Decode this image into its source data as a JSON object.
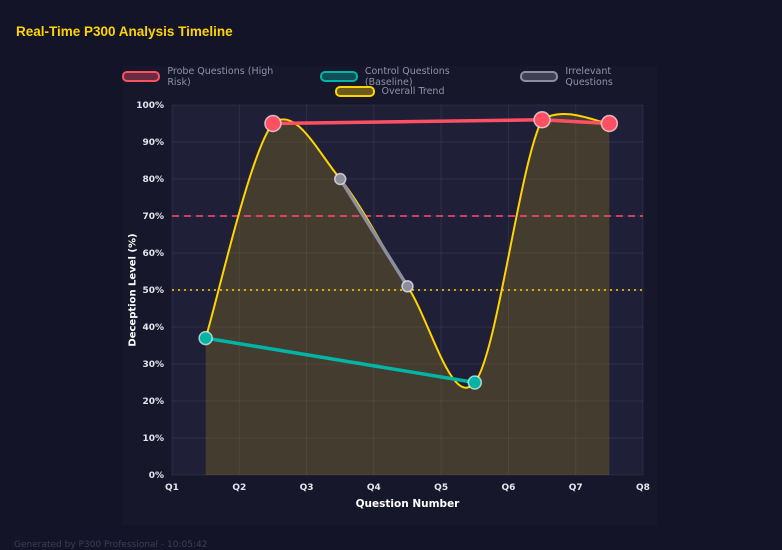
{
  "page": {
    "title": "Real-Time P300 Analysis Timeline",
    "footer_note": "Generated by P300 Professional - 10:05:42"
  },
  "colors": {
    "page_bg": "#141428",
    "panel_bg": "#17172c",
    "plot_bg": "#1f1f38",
    "grid": "rgba(255,255,255,0.07)",
    "title": "#ffd400",
    "tick_text": "#e4e4ee",
    "legend_text": "#9191a6",
    "footer_text": "#3e3e54"
  },
  "chart_data": {
    "type": "line",
    "title": "Real-Time P300 Analysis Timeline",
    "xlabel": "Question Number",
    "ylabel": "Deception Level (%)",
    "xlim": [
      1,
      8
    ],
    "ylim": [
      0,
      100
    ],
    "grid": true,
    "legend_position": "top",
    "x_tick_values": [
      1,
      2,
      3,
      4,
      5,
      6,
      7,
      8
    ],
    "x_tick_labels": [
      "Q1",
      "Q2",
      "Q3",
      "Q4",
      "Q5",
      "Q6",
      "Q7",
      "Q8"
    ],
    "y_tick_values": [
      0,
      10,
      20,
      30,
      40,
      50,
      60,
      70,
      80,
      90,
      100
    ],
    "y_tick_suffix": "%",
    "series": [
      {
        "name": "Probe Questions (High Risk)",
        "color": "#ff4f63",
        "x": [
          2.5,
          6.5,
          7.5
        ],
        "y": [
          95,
          96,
          95
        ],
        "line_width": 3.5,
        "point_radius": 8,
        "smooth": false
      },
      {
        "name": "Control Questions (Baseline)",
        "color": "#00b5a5",
        "x": [
          1.5,
          5.5
        ],
        "y": [
          37,
          25
        ],
        "line_width": 3.5,
        "point_radius": 6.5,
        "smooth": false
      },
      {
        "name": "Irrelevant Questions",
        "color": "#8d8d9e",
        "x": [
          3.5,
          4.5
        ],
        "y": [
          80,
          51
        ],
        "line_width": 3.5,
        "point_radius": 5.5,
        "smooth": false
      },
      {
        "name": "Overall Trend",
        "color": "#ffd400",
        "x": [
          1.5,
          2.5,
          3.5,
          4.5,
          5.5,
          6.5,
          7.5
        ],
        "y": [
          37,
          95,
          80,
          51,
          25,
          96,
          95
        ],
        "line_width": 2,
        "point_radius": 0,
        "smooth": true,
        "fill": "rgba(255,212,0,0.16)"
      }
    ],
    "thresholds": [
      {
        "value": 70,
        "color": "#ff4d6e",
        "dash": "7 5"
      },
      {
        "value": 50,
        "color": "#ffd400",
        "dash": "2 4"
      }
    ]
  }
}
